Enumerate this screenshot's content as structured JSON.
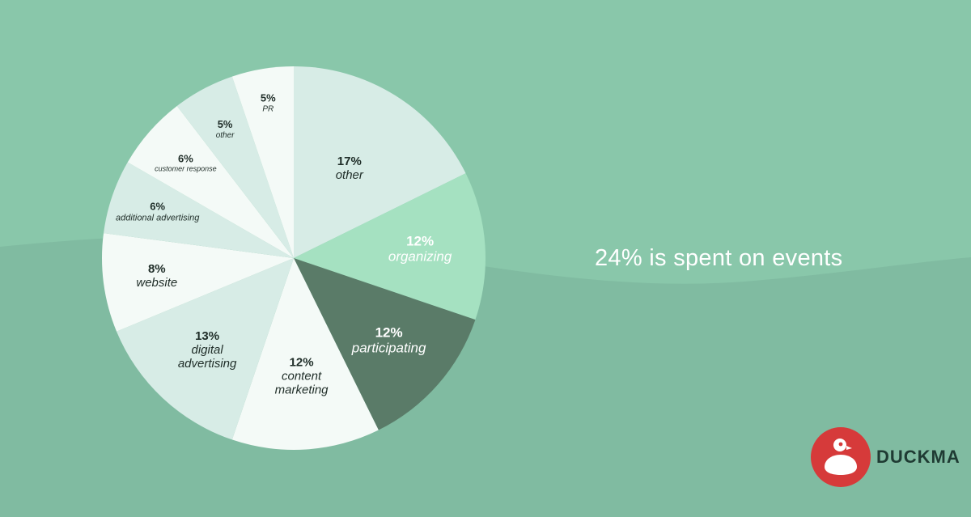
{
  "headline": "24% is spent on events",
  "brand": {
    "name": "DUCKMA",
    "logo_icon": "duck-logo-icon",
    "logo_color": "#d63a3a",
    "text_color": "#1f3b33"
  },
  "colors": {
    "background_top": "#89c7aa",
    "background_bottom": "#80bba1",
    "slice_pale": "#f4faf7",
    "slice_mint": "#d7ece6",
    "slice_green": "#a5e1c1",
    "slice_dark": "#5a7b68"
  },
  "chart_data": {
    "type": "pie",
    "start": "12 o'clock, clockwise",
    "slices": [
      {
        "pct": "17%",
        "label": "other",
        "value": 17,
        "color": "#d7ece6",
        "text_color": "#1f2d28"
      },
      {
        "pct": "12%",
        "label": "organizing",
        "value": 12,
        "color": "#a5e1c1",
        "text_color": "#ffffff"
      },
      {
        "pct": "12%",
        "label": "participating",
        "value": 12,
        "color": "#5a7b68",
        "text_color": "#ffffff"
      },
      {
        "pct": "12%",
        "label": "content marketing",
        "value": 12,
        "color": "#f4faf7",
        "text_color": "#1f2d28"
      },
      {
        "pct": "13%",
        "label": "digital advertising",
        "value": 13,
        "color": "#d7ece6",
        "text_color": "#1f2d28"
      },
      {
        "pct": "8%",
        "label": "website",
        "value": 8,
        "color": "#f4faf7",
        "text_color": "#1f2d28"
      },
      {
        "pct": "6%",
        "label": "additional advertising",
        "value": 6,
        "color": "#d7ece6",
        "text_color": "#1f2d28"
      },
      {
        "pct": "6%",
        "label": "customer response",
        "value": 6,
        "color": "#f4faf7",
        "text_color": "#1f2d28"
      },
      {
        "pct": "5%",
        "label": "other",
        "value": 5,
        "color": "#d7ece6",
        "text_color": "#1f2d28"
      },
      {
        "pct": "5%",
        "label": "PR",
        "value": 5,
        "color": "#f4faf7",
        "text_color": "#1f2d28"
      }
    ]
  }
}
